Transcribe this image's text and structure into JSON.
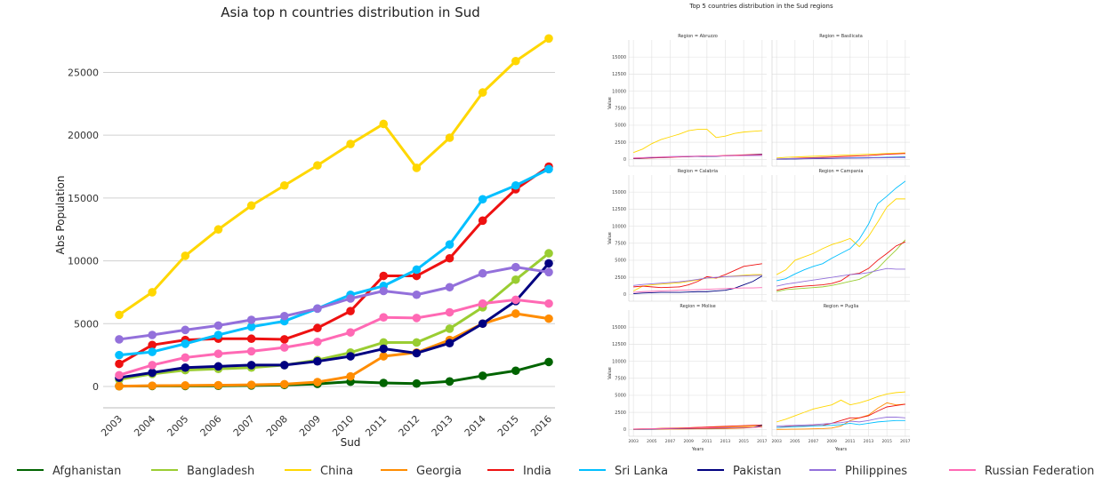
{
  "left": {
    "title": "Asia top n countries distribution in Sud",
    "xlabel": "Sud",
    "ylabel": "Abs Population"
  },
  "right": {
    "title": "Top 5 countries distribution in the Sud regions",
    "ylabel": "Value",
    "xlabel": "Years",
    "yticks": [
      "0",
      "2500",
      "5000",
      "7500",
      "10000",
      "12500",
      "15000"
    ],
    "xticks": [
      "2003",
      "2005",
      "2007",
      "2009",
      "2011",
      "2013",
      "2015",
      "2017"
    ]
  },
  "legend": [
    {
      "name": "Afghanistan",
      "color": "#006400"
    },
    {
      "name": "Bangladesh",
      "color": "#9ACD32"
    },
    {
      "name": "China",
      "color": "#FFD700"
    },
    {
      "name": "Georgia",
      "color": "#FF8C00"
    },
    {
      "name": "India",
      "color": "#EE1111"
    },
    {
      "name": "Sri Lanka",
      "color": "#00BFFF"
    },
    {
      "name": "Pakistan",
      "color": "#000080"
    },
    {
      "name": "Philippines",
      "color": "#9370DB"
    },
    {
      "name": "Russian Federation",
      "color": "#FF69B4"
    }
  ],
  "chart_data": [
    {
      "type": "line",
      "title": "Asia top n countries distribution in Sud",
      "xlabel": "Sud",
      "ylabel": "Abs Population",
      "x": [
        "2003",
        "2004",
        "2005",
        "2006",
        "2007",
        "2008",
        "2009",
        "2010",
        "2011",
        "2012",
        "2013",
        "2014",
        "2015",
        "2016"
      ],
      "yticks": [
        0,
        5000,
        10000,
        15000,
        20000,
        25000
      ],
      "ylim": [
        -1700,
        28500
      ],
      "grid": "horizontal",
      "series": [
        {
          "name": "Afghanistan",
          "color": "#006400",
          "values": [
            20,
            40,
            40,
            50,
            80,
            120,
            200,
            380,
            280,
            230,
            400,
            850,
            1250,
            1950
          ]
        },
        {
          "name": "Bangladesh",
          "color": "#9ACD32",
          "values": [
            550,
            1000,
            1300,
            1400,
            1500,
            1700,
            2100,
            2700,
            3500,
            3500,
            4600,
            6300,
            8500,
            10600
          ]
        },
        {
          "name": "China",
          "color": "#FFD700",
          "values": [
            5700,
            7500,
            10400,
            12500,
            14400,
            16000,
            17600,
            19300,
            20900,
            17400,
            19800,
            23400,
            25900,
            27700
          ]
        },
        {
          "name": "Georgia",
          "color": "#FF8C00",
          "values": [
            20,
            60,
            80,
            100,
            130,
            180,
            350,
            800,
            2400,
            2700,
            3700,
            5000,
            5800,
            5400
          ]
        },
        {
          "name": "India",
          "color": "#EE1111",
          "values": [
            1800,
            3300,
            3700,
            3800,
            3800,
            3750,
            4650,
            6000,
            8800,
            8800,
            10200,
            13200,
            15700,
            17500
          ]
        },
        {
          "name": "Sri Lanka",
          "color": "#00BFFF",
          "values": [
            2500,
            2750,
            3400,
            4100,
            4750,
            5200,
            6200,
            7300,
            8000,
            9300,
            11300,
            14900,
            16000,
            17300
          ]
        },
        {
          "name": "Pakistan",
          "color": "#000080",
          "values": [
            700,
            1100,
            1500,
            1600,
            1700,
            1700,
            2000,
            2400,
            3000,
            2650,
            3450,
            5000,
            6800,
            9800
          ]
        },
        {
          "name": "Philippines",
          "color": "#9370DB",
          "values": [
            3750,
            4100,
            4500,
            4850,
            5300,
            5600,
            6200,
            7000,
            7600,
            7300,
            7900,
            9000,
            9500,
            9100
          ]
        },
        {
          "name": "Russian Federation",
          "color": "#FF69B4",
          "values": [
            900,
            1700,
            2300,
            2600,
            2800,
            3100,
            3550,
            4300,
            5500,
            5450,
            5900,
            6600,
            6900,
            6600
          ]
        }
      ]
    },
    {
      "type": "line",
      "title": "Top 5 countries distribution in the Sud regions",
      "xlabel": "Years",
      "ylabel": "Value",
      "x": [
        2003,
        2004,
        2005,
        2006,
        2007,
        2008,
        2009,
        2010,
        2011,
        2012,
        2013,
        2014,
        2015,
        2016,
        2017
      ],
      "xlim": [
        2002.5,
        2017.5
      ],
      "ylim": [
        -1000,
        17500
      ],
      "panels": [
        {
          "region": "Region = Abruzzo",
          "series": [
            {
              "name": "China",
              "color": "#FFD700",
              "values": [
                1000,
                1500,
                2300,
                2900,
                3300,
                3700,
                4200,
                4400,
                4400,
                3200,
                3400,
                3800,
                4000,
                4100,
                4200
              ]
            },
            {
              "name": "India",
              "color": "#EE1111",
              "values": [
                100,
                150,
                200,
                250,
                300,
                350,
                400,
                450,
                500,
                500,
                550,
                600,
                650,
                700,
                750
              ]
            },
            {
              "name": "Pakistan",
              "color": "#000080",
              "values": [
                150,
                200,
                250,
                300,
                350,
                380,
                400,
                420,
                450,
                450,
                500,
                550,
                600,
                650,
                700
              ]
            },
            {
              "name": "Philippines",
              "color": "#9370DB",
              "values": [
                200,
                250,
                300,
                350,
                400,
                420,
                450,
                480,
                500,
                480,
                500,
                520,
                540,
                560,
                580
              ]
            },
            {
              "name": "Russian Federation",
              "color": "#FF69B4",
              "values": [
                200,
                250,
                300,
                330,
                360,
                400,
                430,
                460,
                500,
                500,
                520,
                550,
                580,
                600,
                620
              ]
            }
          ]
        },
        {
          "region": "Region = Basilicata",
          "series": [
            {
              "name": "China",
              "color": "#FFD700",
              "values": [
                200,
                300,
                350,
                400,
                450,
                500,
                550,
                600,
                650,
                700,
                750,
                800,
                850,
                900,
                950
              ]
            },
            {
              "name": "India",
              "color": "#EE1111",
              "values": [
                50,
                100,
                150,
                200,
                250,
                300,
                350,
                400,
                450,
                500,
                550,
                650,
                750,
                800,
                850
              ]
            },
            {
              "name": "Sri Lanka",
              "color": "#00BFFF",
              "values": [
                50,
                80,
                100,
                120,
                140,
                160,
                180,
                200,
                220,
                240,
                260,
                280,
                300,
                320,
                340
              ]
            },
            {
              "name": "Pakistan",
              "color": "#000080",
              "values": [
                20,
                40,
                60,
                80,
                100,
                120,
                140,
                160,
                180,
                200,
                220,
                240,
                260,
                280,
                300
              ]
            },
            {
              "name": "Philippines",
              "color": "#9370DB",
              "values": [
                60,
                80,
                100,
                120,
                140,
                160,
                180,
                200,
                200,
                200,
                210,
                220,
                230,
                240,
                250
              ]
            }
          ]
        },
        {
          "region": "Region = Calabria",
          "series": [
            {
              "name": "China",
              "color": "#FFD700",
              "values": [
                500,
                1200,
                1400,
                1500,
                1600,
                1700,
                1900,
                2100,
                2400,
                2400,
                2600,
                2700,
                2800,
                2900,
                2900
              ]
            },
            {
              "name": "India",
              "color": "#EE1111",
              "values": [
                1100,
                1200,
                1100,
                1000,
                1050,
                1100,
                1400,
                1900,
                2600,
                2400,
                2900,
                3500,
                4100,
                4300,
                4500
              ]
            },
            {
              "name": "Pakistan",
              "color": "#000080",
              "values": [
                100,
                200,
                250,
                300,
                300,
                300,
                350,
                400,
                400,
                500,
                600,
                900,
                1400,
                1900,
                2700
              ]
            },
            {
              "name": "Philippines",
              "color": "#9370DB",
              "values": [
                1300,
                1450,
                1550,
                1650,
                1750,
                1850,
                2000,
                2200,
                2400,
                2500,
                2600,
                2650,
                2700,
                2750,
                2800
              ]
            },
            {
              "name": "Russian Federation",
              "color": "#FF69B4",
              "values": [
                300,
                400,
                450,
                500,
                550,
                600,
                650,
                700,
                750,
                800,
                850,
                900,
                950,
                950,
                1000
              ]
            }
          ]
        },
        {
          "region": "Region = Campania",
          "series": [
            {
              "name": "China",
              "color": "#FFD700",
              "values": [
                2900,
                3600,
                5000,
                5500,
                6000,
                6700,
                7300,
                7700,
                8200,
                7000,
                8500,
                10600,
                12800,
                14000,
                14000
              ]
            },
            {
              "name": "Bangladesh",
              "color": "#9ACD32",
              "values": [
                400,
                700,
                800,
                900,
                1000,
                1100,
                1300,
                1600,
                1900,
                2200,
                2900,
                3800,
                5200,
                6500,
                8000
              ]
            },
            {
              "name": "India",
              "color": "#EE1111",
              "values": [
                600,
                900,
                1100,
                1200,
                1300,
                1400,
                1600,
                2000,
                2900,
                3100,
                3800,
                5000,
                6000,
                7100,
                7700
              ]
            },
            {
              "name": "Sri Lanka",
              "color": "#00BFFF",
              "values": [
                2000,
                2300,
                3000,
                3600,
                4100,
                4500,
                5300,
                6000,
                6700,
                8100,
                10300,
                13300,
                14400,
                15600,
                16600
              ]
            },
            {
              "name": "Philippines",
              "color": "#9370DB",
              "values": [
                1200,
                1500,
                1700,
                1900,
                2100,
                2300,
                2500,
                2700,
                2900,
                3000,
                3200,
                3500,
                3800,
                3700,
                3700
              ]
            }
          ]
        },
        {
          "region": "Region = Molise",
          "series": [
            {
              "name": "China",
              "color": "#FFD700",
              "values": [
                50,
                80,
                100,
                150,
                200,
                220,
                250,
                300,
                320,
                350,
                380,
                400,
                420,
                450,
                480
              ]
            },
            {
              "name": "Georgia",
              "color": "#FF8C00",
              "values": [
                10,
                20,
                30,
                40,
                50,
                60,
                70,
                80,
                90,
                100,
                120,
                150,
                200,
                300,
                400
              ]
            },
            {
              "name": "India",
              "color": "#EE1111",
              "values": [
                50,
                80,
                100,
                150,
                180,
                200,
                250,
                300,
                350,
                400,
                450,
                500,
                550,
                600,
                650
              ]
            },
            {
              "name": "Pakistan",
              "color": "#000080",
              "values": [
                20,
                40,
                60,
                80,
                100,
                120,
                140,
                160,
                180,
                200,
                220,
                240,
                260,
                300,
                600
              ]
            },
            {
              "name": "Russian Federation",
              "color": "#FF69B4",
              "values": [
                60,
                80,
                100,
                120,
                140,
                160,
                180,
                200,
                220,
                240,
                260,
                280,
                300,
                320,
                340
              ]
            }
          ]
        },
        {
          "region": "Region = Puglia",
          "series": [
            {
              "name": "China",
              "color": "#FFD700",
              "values": [
                1100,
                1500,
                2000,
                2500,
                3000,
                3300,
                3600,
                4300,
                3600,
                3900,
                4300,
                4800,
                5200,
                5400,
                5500
              ]
            },
            {
              "name": "Georgia",
              "color": "#FF8C00",
              "values": [
                10,
                20,
                40,
                50,
                80,
                120,
                200,
                500,
                1300,
                1700,
                2100,
                3100,
                3900,
                3600,
                3700
              ]
            },
            {
              "name": "India",
              "color": "#EE1111",
              "values": [
                300,
                400,
                450,
                500,
                550,
                600,
                900,
                1300,
                1700,
                1700,
                2000,
                2700,
                3300,
                3500,
                3700
              ]
            },
            {
              "name": "Sri Lanka",
              "color": "#00BFFF",
              "values": [
                300,
                350,
                400,
                450,
                500,
                550,
                600,
                700,
                900,
                700,
                900,
                1100,
                1200,
                1300,
                1300
              ]
            },
            {
              "name": "Philippines",
              "color": "#9370DB",
              "values": [
                500,
                550,
                600,
                650,
                700,
                800,
                900,
                1000,
                1200,
                1100,
                1300,
                1600,
                1800,
                1800,
                1700
              ]
            }
          ]
        }
      ]
    }
  ]
}
